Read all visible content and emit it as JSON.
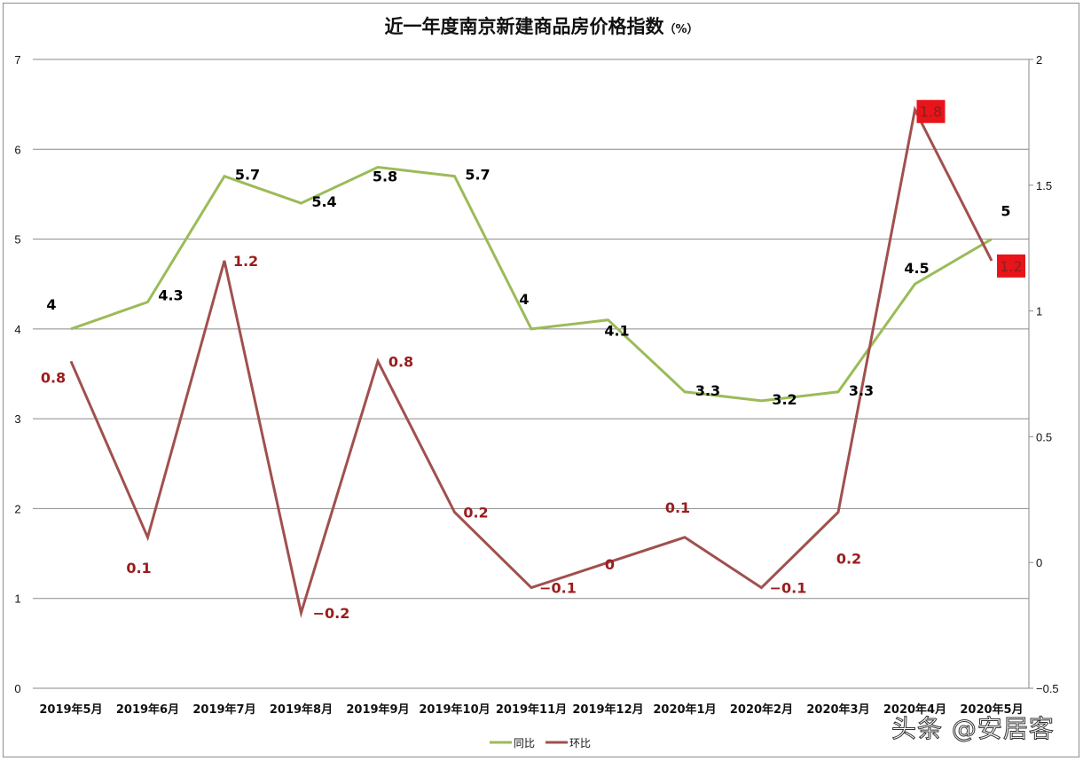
{
  "chart_data": {
    "type": "line",
    "title": "近一年度南京新建商品房价格指数",
    "title_unit": "（%）",
    "categories": [
      "2019年5月",
      "2019年6月",
      "2019年7月",
      "2019年8月",
      "2019年9月",
      "2019年10月",
      "2019年11月",
      "2019年12月",
      "2020年1月",
      "2020年2月",
      "2020年3月",
      "2020年4月",
      "2020年5月"
    ],
    "series": [
      {
        "name": "同比",
        "axis": "left",
        "color": "#9bbb59",
        "values": [
          4,
          4.3,
          5.7,
          5.4,
          5.8,
          5.7,
          4,
          4.1,
          3.3,
          3.2,
          3.3,
          4.5,
          5
        ]
      },
      {
        "name": "环比",
        "axis": "right",
        "color": "#a0504e",
        "values": [
          0.8,
          0.1,
          1.2,
          -0.2,
          0.8,
          0.2,
          -0.1,
          0,
          0.1,
          -0.1,
          0.2,
          1.8,
          1.2
        ]
      }
    ],
    "y_left": {
      "min": 0,
      "max": 7,
      "ticks": [
        "0",
        "1",
        "2",
        "3",
        "4",
        "5",
        "6",
        "7"
      ]
    },
    "y_right": {
      "min": -0.5,
      "max": 2,
      "ticks": [
        "−0.5",
        "0",
        "0.5",
        "1",
        "1.5",
        "2"
      ]
    },
    "grid": true,
    "legend_position": "bottom",
    "label_colors": {
      "同比": "#000000",
      "环比": "#9b1c1c"
    },
    "highlight_boxes": {
      "color": "#e8141a",
      "indices": [
        11,
        12
      ]
    }
  },
  "legend": {
    "item1": "同比",
    "item2": "环比"
  },
  "watermark": "头条 @安居客"
}
